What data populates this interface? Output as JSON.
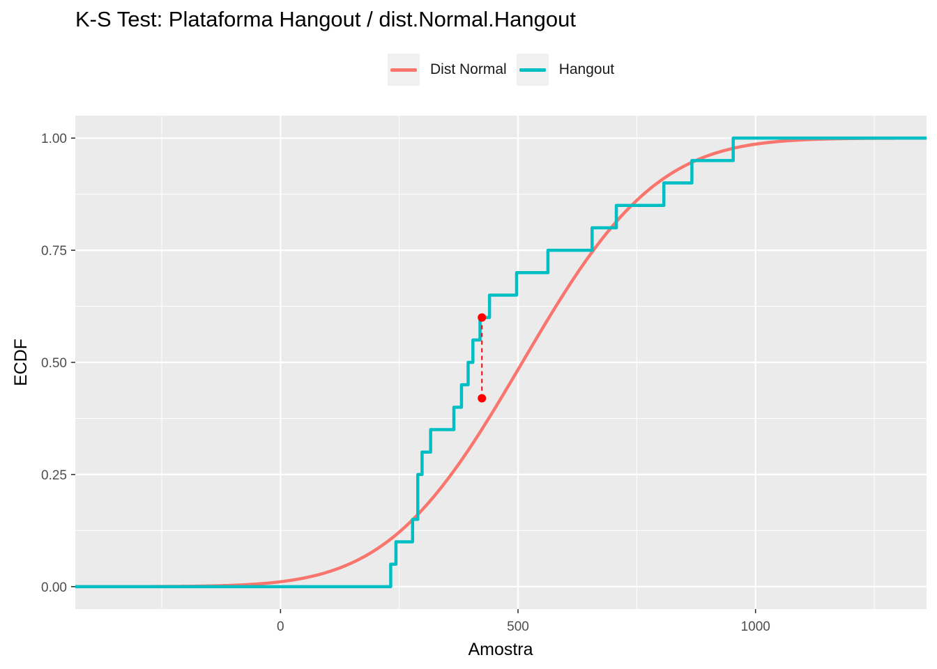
{
  "chart_data": {
    "type": "line",
    "title": "K-S Test: Plataforma Hangout / dist.Normal.Hangout",
    "xlabel": "Amostra",
    "ylabel": "ECDF",
    "xlim": [
      -432,
      1360
    ],
    "ylim": [
      -0.05,
      1.05
    ],
    "x_ticks": [
      0,
      500,
      1000
    ],
    "x_tick_labels": [
      "0",
      "500",
      "1000"
    ],
    "y_ticks": [
      0,
      0.25,
      0.5,
      0.75,
      1
    ],
    "y_tick_labels": [
      "0.00",
      "0.25",
      "0.50",
      "0.75",
      "1.00"
    ],
    "grid": true,
    "legend_position": "top",
    "series": [
      {
        "name": "Dist Normal",
        "kind": "normal_cdf",
        "mean": 509,
        "sd": 222,
        "x_range": [
          -432,
          1360
        ],
        "color": "#F8766D"
      },
      {
        "name": "Hangout",
        "kind": "step",
        "x": [
          -432,
          232,
          243,
          278,
          289,
          298,
          316,
          365,
          381,
          395,
          405,
          420,
          440,
          497,
          563,
          656,
          707,
          807,
          866,
          953,
          1360
        ],
        "y": [
          0,
          0.05,
          0.1,
          0.15,
          0.25,
          0.3,
          0.35,
          0.4,
          0.45,
          0.5,
          0.55,
          0.6,
          0.65,
          0.7,
          0.75,
          0.8,
          0.85,
          0.9,
          0.95,
          1.0,
          1.0
        ],
        "color": "#00BFC4"
      }
    ],
    "ks_statistic": {
      "x": 424,
      "y_ecdf": 0.6,
      "y_normal": 0.42,
      "color": "#FF0000"
    }
  }
}
